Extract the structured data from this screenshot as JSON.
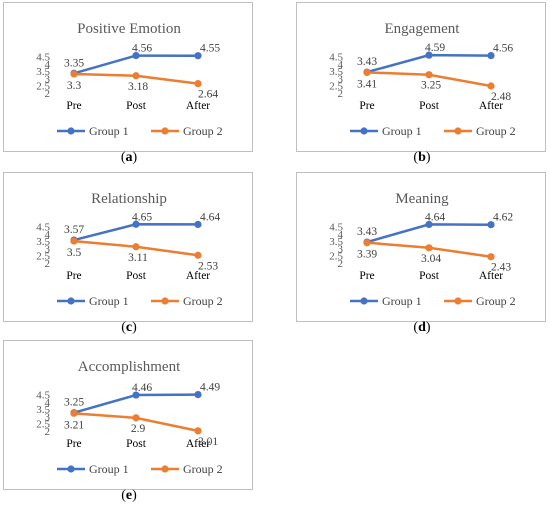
{
  "chart_data": [
    {
      "type": "line",
      "title": "Positive Emotion",
      "caption": "a",
      "categories": [
        "Pre",
        "Post",
        "After"
      ],
      "y_ticks": [
        "2",
        "2.5",
        "3",
        "3.5",
        "4",
        "4.5"
      ],
      "ylim": [
        2,
        4.6
      ],
      "series": [
        {
          "name": "Group 1",
          "values": [
            3.35,
            4.56,
            4.55
          ],
          "labels": [
            "3.35",
            "4.56",
            "4.55"
          ],
          "color": "#4472c4"
        },
        {
          "name": "Group 2",
          "values": [
            3.3,
            3.18,
            2.64
          ],
          "labels": [
            "3.3",
            "3.18",
            "2.64"
          ],
          "color": "#ed7d31"
        }
      ],
      "legend": "bottom"
    },
    {
      "type": "line",
      "title": "Engagement",
      "caption": "b",
      "categories": [
        "Pre",
        "Post",
        "After"
      ],
      "y_ticks": [
        "2",
        "2.5",
        "3",
        "3.5",
        "4",
        "4.5"
      ],
      "ylim": [
        2,
        4.6
      ],
      "series": [
        {
          "name": "Group 1",
          "values": [
            3.43,
            4.59,
            4.56
          ],
          "labels": [
            "3.43",
            "4.59",
            "4.56"
          ],
          "color": "#4472c4"
        },
        {
          "name": "Group 2",
          "values": [
            3.41,
            3.25,
            2.48
          ],
          "labels": [
            "3.41",
            "3.25",
            "2.48"
          ],
          "color": "#ed7d31"
        }
      ],
      "legend": "bottom"
    },
    {
      "type": "line",
      "title": "Relationship",
      "caption": "c",
      "categories": [
        "Pre",
        "Post",
        "After"
      ],
      "y_ticks": [
        "2",
        "2.5",
        "3",
        "3.5",
        "4",
        "4.5"
      ],
      "ylim": [
        2,
        4.6
      ],
      "series": [
        {
          "name": "Group 1",
          "values": [
            3.57,
            4.65,
            4.64
          ],
          "labels": [
            "3.57",
            "4.65",
            "4.64"
          ],
          "color": "#4472c4"
        },
        {
          "name": "Group 2",
          "values": [
            3.5,
            3.11,
            2.53
          ],
          "labels": [
            "3.5",
            "3.11",
            "2.53"
          ],
          "color": "#ed7d31"
        }
      ],
      "legend": "bottom"
    },
    {
      "type": "line",
      "title": "Meaning",
      "caption": "d",
      "categories": [
        "Pre",
        "Post",
        "After"
      ],
      "y_ticks": [
        "2",
        "2.5",
        "3",
        "3.5",
        "4",
        "4.5"
      ],
      "ylim": [
        2,
        4.6
      ],
      "series": [
        {
          "name": "Group 1",
          "values": [
            3.43,
            4.64,
            4.62
          ],
          "labels": [
            "3.43",
            "4.64",
            "4.62"
          ],
          "color": "#4472c4"
        },
        {
          "name": "Group 2",
          "values": [
            3.39,
            3.04,
            2.43
          ],
          "labels": [
            "3.39",
            "3.04",
            "2.43"
          ],
          "color": "#ed7d31"
        }
      ],
      "legend": "bottom"
    },
    {
      "type": "line",
      "title": "Accomplishment",
      "caption": "e",
      "categories": [
        "Pre",
        "Post",
        "After"
      ],
      "y_ticks": [
        "2",
        "2.5",
        "3",
        "3.5",
        "4",
        "4.5"
      ],
      "ylim": [
        2,
        4.6
      ],
      "series": [
        {
          "name": "Group 1",
          "values": [
            3.25,
            4.46,
            4.49
          ],
          "labels": [
            "3.25",
            "4.46",
            "4.49"
          ],
          "color": "#4472c4"
        },
        {
          "name": "Group 2",
          "values": [
            3.21,
            2.9,
            2.01
          ],
          "labels": [
            "3.21",
            "2.9",
            "2.01"
          ],
          "color": "#ed7d31"
        }
      ],
      "legend": "bottom"
    }
  ]
}
